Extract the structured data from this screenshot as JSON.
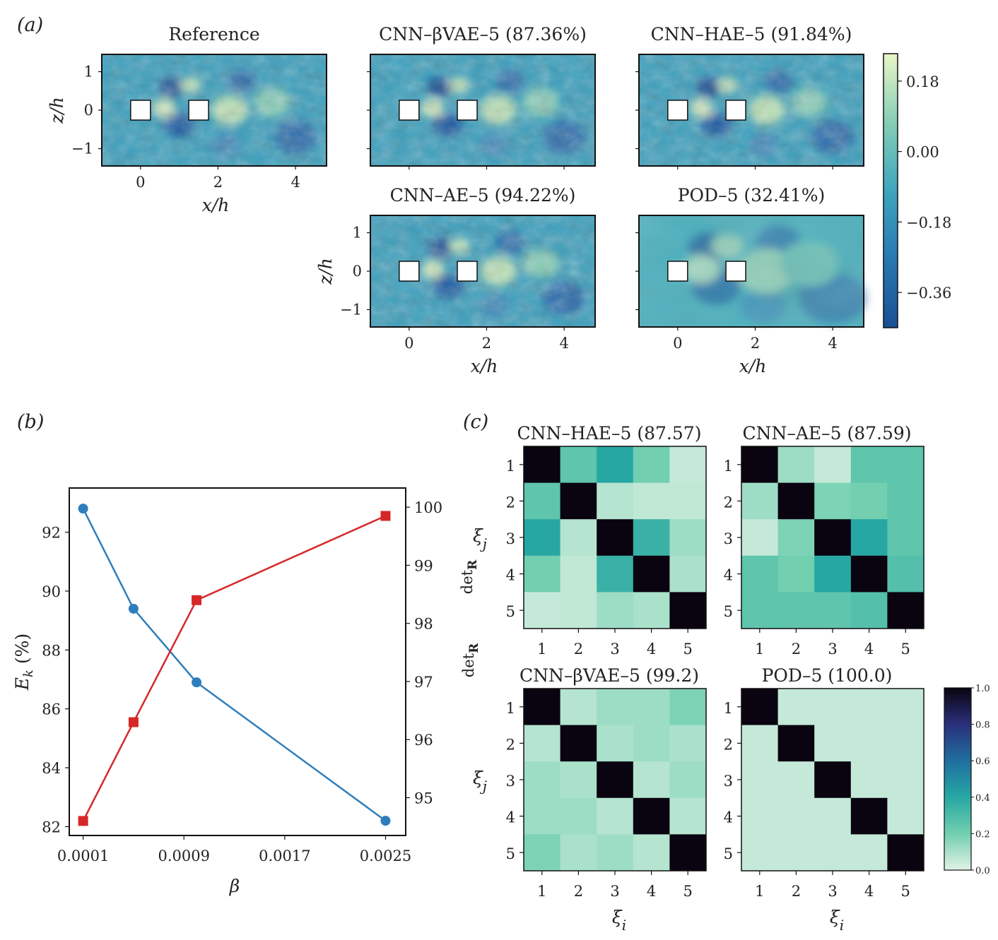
{
  "panel_labels": {
    "a": "(a)",
    "b": "(b)",
    "c": "(c)"
  },
  "chart_data": [
    {
      "type": "heatmap",
      "description_note": "panel (a) flow fields",
      "panels": [
        {
          "title": "Reference",
          "detail": "fine"
        },
        {
          "title": "CNN–βVAE–5 (87.36%)",
          "detail": "fine"
        },
        {
          "title": "CNN–HAE–5 (91.84%)",
          "detail": "fine"
        },
        {
          "title": "CNN–AE–5 (94.22%)",
          "detail": "fine"
        },
        {
          "title": "POD–5 (32.41%)",
          "detail": "smooth"
        }
      ],
      "xlabel": "x/h",
      "ylabel": "z/h",
      "xticks": [
        "0",
        "2",
        "4"
      ],
      "yticks": [
        "1",
        "0",
        "−1"
      ],
      "xlim": [
        -1,
        4.8
      ],
      "ylim": [
        -1.45,
        1.45
      ],
      "obstacles_x": [
        0,
        1.5
      ],
      "colorbar": {
        "ticks": [
          "0.18",
          "0.00",
          "−0.18",
          "−0.36"
        ],
        "values": [
          0.18,
          0,
          -0.18,
          -0.36
        ],
        "range": [
          -0.45,
          0.25
        ],
        "colors": [
          "#1c5a9c",
          "#2e8bb8",
          "#4fb4b8",
          "#a8d9b4",
          "#e9f5c8"
        ]
      }
    },
    {
      "type": "line",
      "description_note": "panel (b)",
      "xlabel": "β",
      "ylabel_left": "E_k (%)",
      "ylabel_right": "det_R",
      "x_ticks": [
        "0.0001",
        "0.0009",
        "0.0017",
        "0.0025"
      ],
      "x_tick_values": [
        0.0001,
        0.0009,
        0.0017,
        0.0025
      ],
      "xlim": [
        -1e-05,
        0.00266
      ],
      "ylim_left": [
        81.7,
        93.5
      ],
      "ylim_right": [
        94.35,
        100.33
      ],
      "yticks_left": [
        82,
        84,
        86,
        88,
        90,
        92
      ],
      "yticks_right": [
        95,
        96,
        97,
        98,
        99,
        100
      ],
      "series": [
        {
          "axis": "left",
          "color": "#2e7ebc",
          "marker": "circle",
          "x": [
            0.0001,
            0.0005,
            0.001,
            0.0025
          ],
          "y": [
            92.8,
            89.4,
            86.9,
            82.2
          ]
        },
        {
          "axis": "right",
          "color": "#d62728",
          "marker": "square",
          "x": [
            0.0001,
            0.0005,
            0.001,
            0.0025
          ],
          "y": [
            94.6,
            96.3,
            98.4,
            99.85
          ]
        }
      ]
    },
    {
      "type": "heatmap",
      "description_note": "panel (c) correlation matrices",
      "xlabel": "ξi",
      "ylabel": "ξj",
      "row_label": "det",
      "row_label_sub": "R",
      "ticks": [
        "1",
        "2",
        "3",
        "4",
        "5"
      ],
      "matrices": [
        {
          "title": "CNN–HAE–5 (87.57)",
          "values": [
            [
              1,
              0.25,
              0.4,
              0.2,
              0.05
            ],
            [
              0.25,
              1,
              0.08,
              0.06,
              0.06
            ],
            [
              0.4,
              0.08,
              1,
              0.35,
              0.12
            ],
            [
              0.2,
              0.06,
              0.35,
              1,
              0.1
            ],
            [
              0.05,
              0.06,
              0.12,
              0.1,
              1
            ]
          ]
        },
        {
          "title": "CNN–AE–5 (87.59)",
          "values": [
            [
              1,
              0.12,
              0.05,
              0.25,
              0.25
            ],
            [
              0.12,
              1,
              0.18,
              0.2,
              0.25
            ],
            [
              0.05,
              0.18,
              1,
              0.4,
              0.25
            ],
            [
              0.25,
              0.2,
              0.4,
              1,
              0.28
            ],
            [
              0.25,
              0.25,
              0.25,
              0.28,
              1
            ]
          ]
        },
        {
          "title": "CNN–βVAE–5 (99.2)",
          "values": [
            [
              1,
              0.08,
              0.12,
              0.12,
              0.18
            ],
            [
              0.08,
              1,
              0.1,
              0.12,
              0.1
            ],
            [
              0.12,
              0.1,
              1,
              0.08,
              0.12
            ],
            [
              0.12,
              0.12,
              0.08,
              1,
              0.08
            ],
            [
              0.18,
              0.1,
              0.12,
              0.08,
              1
            ]
          ]
        },
        {
          "title": "POD–5 (100.0)",
          "values": [
            [
              1,
              0.05,
              0.05,
              0.05,
              0.05
            ],
            [
              0.05,
              1,
              0.05,
              0.05,
              0.05
            ],
            [
              0.05,
              0.05,
              1,
              0.05,
              0.05
            ],
            [
              0.05,
              0.05,
              0.05,
              1,
              0.05
            ],
            [
              0.05,
              0.05,
              0.05,
              0.05,
              1
            ]
          ]
        }
      ],
      "colorbar": {
        "ticks": [
          "1.0",
          "0.8",
          "0.6",
          "0.4",
          "0.2",
          "0.0"
        ],
        "values": [
          1,
          0.8,
          0.6,
          0.4,
          0.2,
          0
        ],
        "range": [
          0,
          1
        ]
      }
    }
  ]
}
